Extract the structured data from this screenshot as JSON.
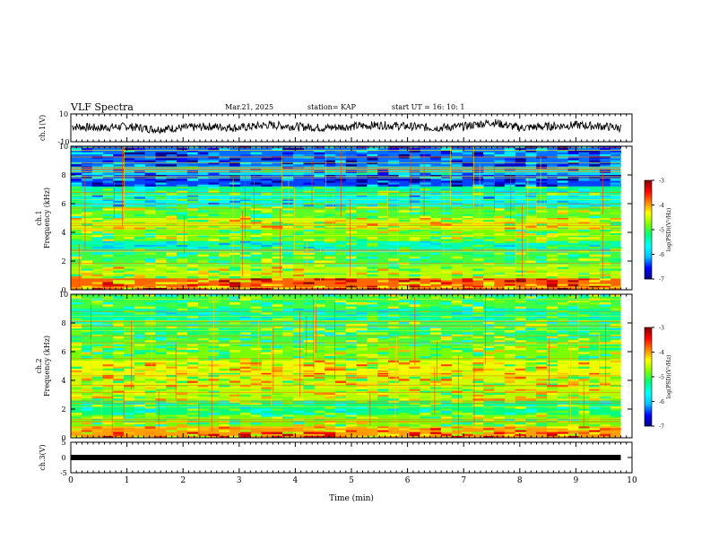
{
  "header": {
    "title": "VLF Spectra",
    "date": "Mar.21, 2025",
    "station": "station= KAP",
    "start": "start  UT  =   16: 10: 1"
  },
  "colors": {
    "scale": [
      "#000080",
      "#0000ff",
      "#00bfff",
      "#00ffff",
      "#00ff80",
      "#7fff00",
      "#ffff00",
      "#ff8000",
      "#ff0000",
      "#800000"
    ]
  },
  "chart_data": [
    {
      "type": "line",
      "panel": "ch1-waveform",
      "ylabel": "ch.1(V)",
      "ylim": [
        -10,
        10
      ],
      "yticks": [
        "10",
        "-10"
      ],
      "xlim": [
        0,
        10
      ],
      "x": [
        0.0,
        0.5,
        1.0,
        1.5,
        2.0,
        2.5,
        3.0,
        3.5,
        4.0,
        4.5,
        5.0,
        5.5,
        6.0,
        6.5,
        7.0,
        7.5,
        8.0,
        8.5,
        9.0,
        9.5,
        9.8
      ],
      "y": [
        1,
        0,
        1,
        -1,
        0,
        1,
        0,
        2,
        1,
        0,
        1,
        2,
        1,
        0,
        1,
        4,
        0,
        1,
        2,
        1,
        0
      ]
    },
    {
      "type": "heatmap",
      "panel": "ch1-spectrogram",
      "ylabel": "ch.1\nFrequency (kHz)",
      "ylim": [
        0,
        10
      ],
      "yticks": [
        "0",
        "2",
        "4",
        "6",
        "8",
        "10"
      ],
      "xlim": [
        0,
        9.8
      ],
      "colorbar": {
        "label": "log(PSD)(V²/Hz)",
        "range": [
          -7,
          -3
        ],
        "ticks": [
          "-3",
          "-4",
          "-5",
          "-6",
          "-7"
        ]
      },
      "bands": [
        {
          "f0": 0,
          "f1": 0.8,
          "level": -3.8
        },
        {
          "f0": 0.8,
          "f1": 1.6,
          "level": -4.6
        },
        {
          "f0": 1.6,
          "f1": 2.6,
          "level": -5.0
        },
        {
          "f0": 2.6,
          "f1": 3.4,
          "level": -5.4
        },
        {
          "f0": 3.4,
          "f1": 4.2,
          "level": -4.8
        },
        {
          "f0": 4.2,
          "f1": 5.0,
          "level": -4.5
        },
        {
          "f0": 5.0,
          "f1": 5.8,
          "level": -4.9
        },
        {
          "f0": 5.8,
          "f1": 6.6,
          "level": -5.6
        },
        {
          "f0": 6.6,
          "f1": 7.2,
          "level": -5.3
        },
        {
          "f0": 7.2,
          "f1": 8.0,
          "level": -6.4
        },
        {
          "f0": 8.0,
          "f1": 8.6,
          "level": -5.9
        },
        {
          "f0": 8.6,
          "f1": 10.0,
          "level": -6.3
        }
      ]
    },
    {
      "type": "heatmap",
      "panel": "ch2-spectrogram",
      "ylabel": "ch.2\nFrequency (kHz)",
      "ylim": [
        0,
        10
      ],
      "yticks": [
        "0",
        "2",
        "4",
        "6",
        "8",
        "10"
      ],
      "xlim": [
        0,
        9.8
      ],
      "colorbar": {
        "label": "log(PSD)(V²/Hz)",
        "range": [
          -7,
          -3
        ],
        "ticks": [
          "-3",
          "-4",
          "-5",
          "-6",
          "-7"
        ]
      },
      "bands": [
        {
          "f0": 0,
          "f1": 0.8,
          "level": -4.0
        },
        {
          "f0": 0.8,
          "f1": 1.6,
          "level": -4.8
        },
        {
          "f0": 1.6,
          "f1": 2.6,
          "level": -5.2
        },
        {
          "f0": 2.6,
          "f1": 3.4,
          "level": -4.6
        },
        {
          "f0": 3.4,
          "f1": 4.4,
          "level": -4.5
        },
        {
          "f0": 4.4,
          "f1": 5.4,
          "level": -4.4
        },
        {
          "f0": 5.4,
          "f1": 6.4,
          "level": -4.8
        },
        {
          "f0": 6.4,
          "f1": 7.2,
          "level": -5.0
        },
        {
          "f0": 7.2,
          "f1": 8.2,
          "level": -5.1
        },
        {
          "f0": 8.2,
          "f1": 9.0,
          "level": -5.3
        },
        {
          "f0": 9.0,
          "f1": 10.0,
          "level": -5.0
        }
      ]
    },
    {
      "type": "line",
      "panel": "ch3-waveform",
      "ylabel": "ch.3(V)",
      "ylim": [
        -5,
        5
      ],
      "yticks": [
        "5",
        "0",
        "-5"
      ],
      "xlim": [
        0,
        10
      ],
      "x": [
        0,
        9.8
      ],
      "y": [
        0,
        0
      ],
      "xlabel": "Time  (min)",
      "xticks": [
        "0",
        "1",
        "2",
        "3",
        "4",
        "5",
        "6",
        "7",
        "8",
        "9",
        "10"
      ]
    }
  ]
}
